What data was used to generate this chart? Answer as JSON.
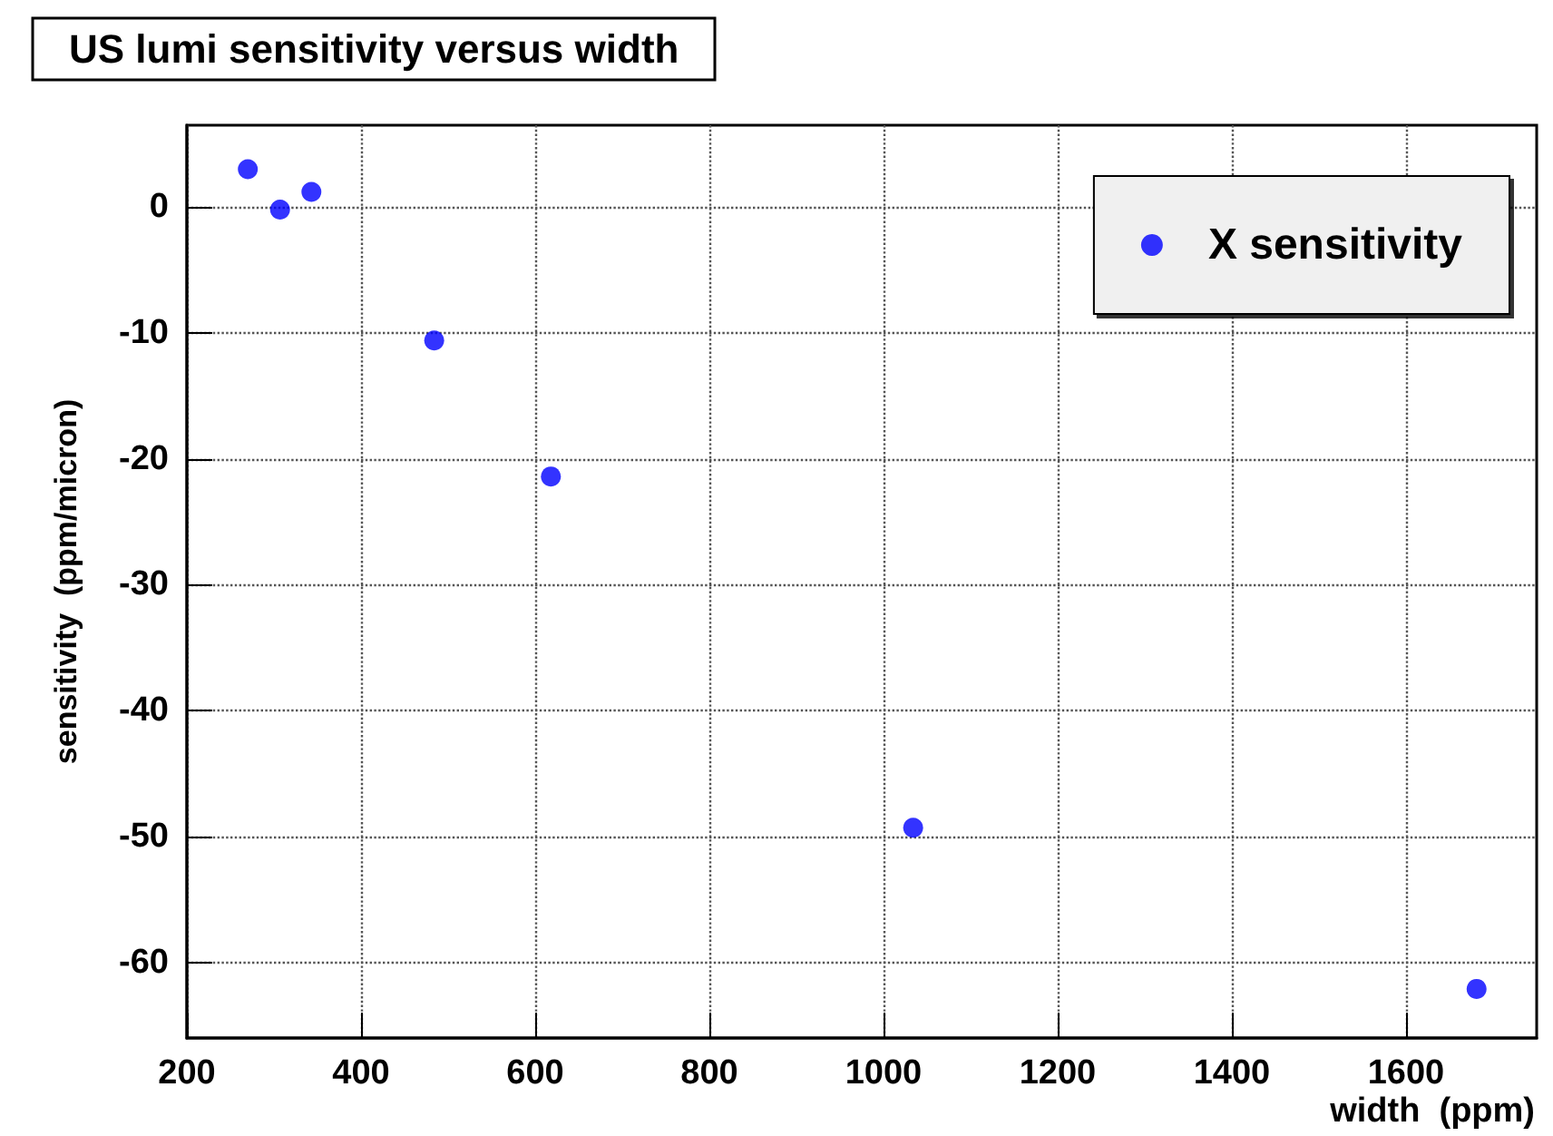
{
  "chart_data": {
    "type": "scatter",
    "title": "US lumi sensitivity versus width",
    "xlabel": "width  (ppm)",
    "ylabel": "sensitivity  (ppm/micron)",
    "x": [
      270,
      307,
      343,
      484,
      618,
      1034,
      1681
    ],
    "series": [
      {
        "name": "X sensitivity",
        "color": "#0000ff",
        "values": [
          3.0,
          -0.2,
          1.2,
          -10.6,
          -21.4,
          -49.3,
          -62.1
        ]
      }
    ],
    "xlim": [
      200,
      1750
    ],
    "xticks": [
      200,
      400,
      600,
      800,
      1000,
      1200,
      1400,
      1600
    ],
    "ylim": [
      -66,
      6.5
    ],
    "yticks": [
      -60,
      -50,
      -40,
      -30,
      -20,
      -10,
      0
    ],
    "grid": true,
    "legend": "top right",
    "marker": "circle"
  }
}
